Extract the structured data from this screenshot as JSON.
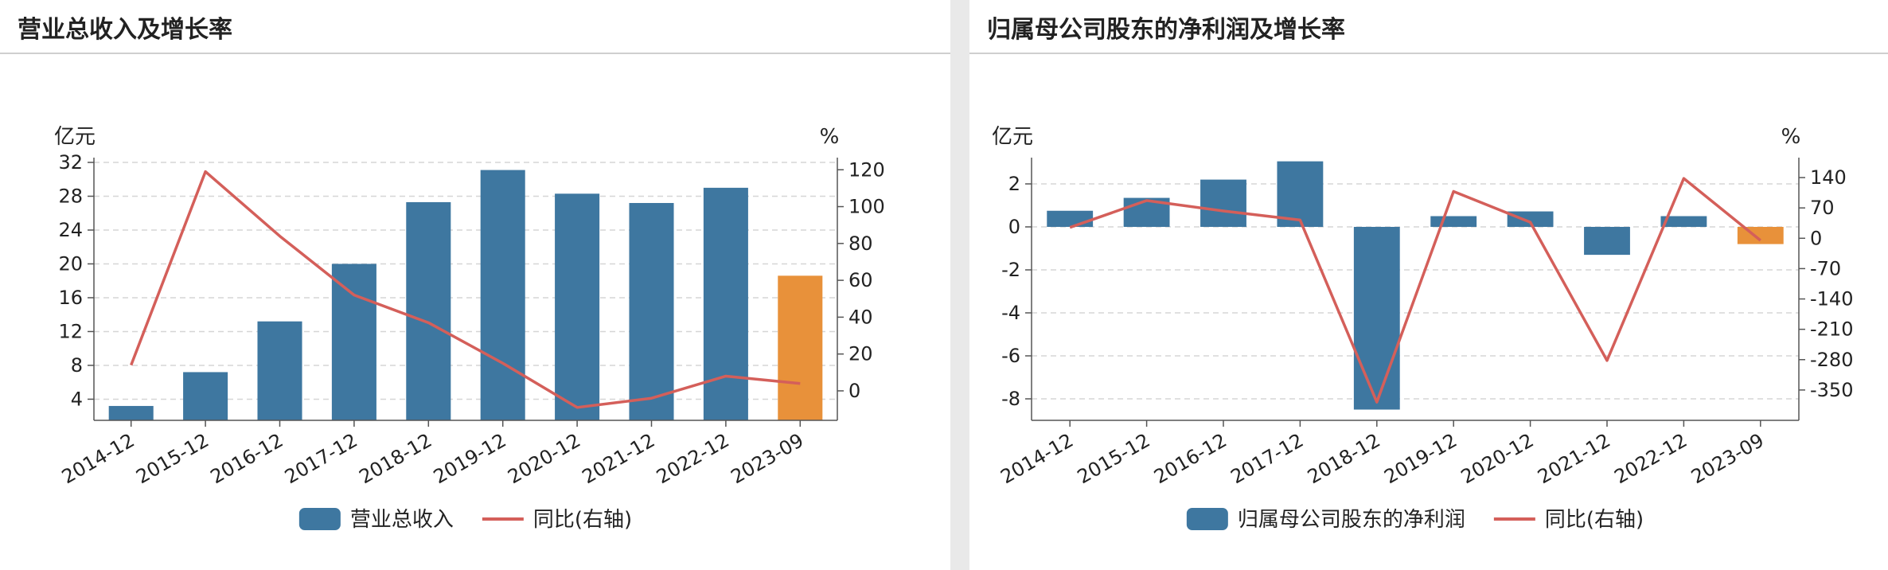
{
  "panels": [
    {
      "title": "营业总收入及增长率",
      "chart_data": {
        "type": "bar",
        "categories": [
          "2014-12",
          "2015-12",
          "2016-12",
          "2017-12",
          "2018-12",
          "2019-12",
          "2020-12",
          "2021-12",
          "2022-12",
          "2023-09"
        ],
        "left_axis": {
          "unit": "亿元",
          "ylim": [
            1.5,
            32
          ],
          "ticks": [
            4,
            8,
            12,
            16,
            20,
            24,
            28,
            32
          ]
        },
        "right_axis": {
          "unit": "%",
          "ylim": [
            -16,
            124
          ],
          "ticks": [
            0,
            20,
            40,
            60,
            80,
            100,
            120
          ]
        },
        "series": [
          {
            "name": "营业总收入",
            "kind": "bar",
            "axis": "left",
            "values": [
              3.2,
              7.2,
              13.2,
              20.0,
              27.3,
              31.1,
              28.3,
              27.2,
              29.0,
              18.6
            ],
            "color": "#3e77a0",
            "highlight_last_color": "#e8913a"
          },
          {
            "name": "同比(右轴)",
            "kind": "line",
            "axis": "right",
            "values": [
              14,
              119,
              84,
              52,
              37,
              15,
              -9,
              -4,
              8,
              4
            ],
            "color": "#d45f5a"
          }
        ],
        "grid": true,
        "legend": "bottom-center"
      }
    },
    {
      "title": "归属母公司股东的净利润及增长率",
      "chart_data": {
        "type": "bar",
        "categories": [
          "2014-12",
          "2015-12",
          "2016-12",
          "2017-12",
          "2018-12",
          "2019-12",
          "2020-12",
          "2021-12",
          "2022-12",
          "2023-09"
        ],
        "left_axis": {
          "unit": "亿元",
          "ylim": [
            -9,
            3
          ],
          "ticks": [
            -8,
            -6,
            -4,
            -2,
            0,
            2
          ]
        },
        "right_axis": {
          "unit": "%",
          "ylim": [
            -420,
            175
          ],
          "ticks": [
            -350,
            -280,
            -210,
            -140,
            -70,
            0,
            70,
            140
          ]
        },
        "series": [
          {
            "name": "归属母公司股东的净利润",
            "kind": "bar",
            "axis": "left",
            "values": [
              0.75,
              1.35,
              2.2,
              3.05,
              -8.5,
              0.5,
              0.72,
              -1.3,
              0.5,
              -0.8
            ],
            "color": "#3e77a0",
            "highlight_last_color": "#e8913a"
          },
          {
            "name": "同比(右轴)",
            "kind": "line",
            "axis": "right",
            "values": [
              25,
              87,
              63,
              42,
              -378,
              108,
              37,
              -282,
              138,
              -5
            ],
            "color": "#d45f5a"
          }
        ],
        "grid": true,
        "legend": "bottom-center"
      }
    }
  ]
}
